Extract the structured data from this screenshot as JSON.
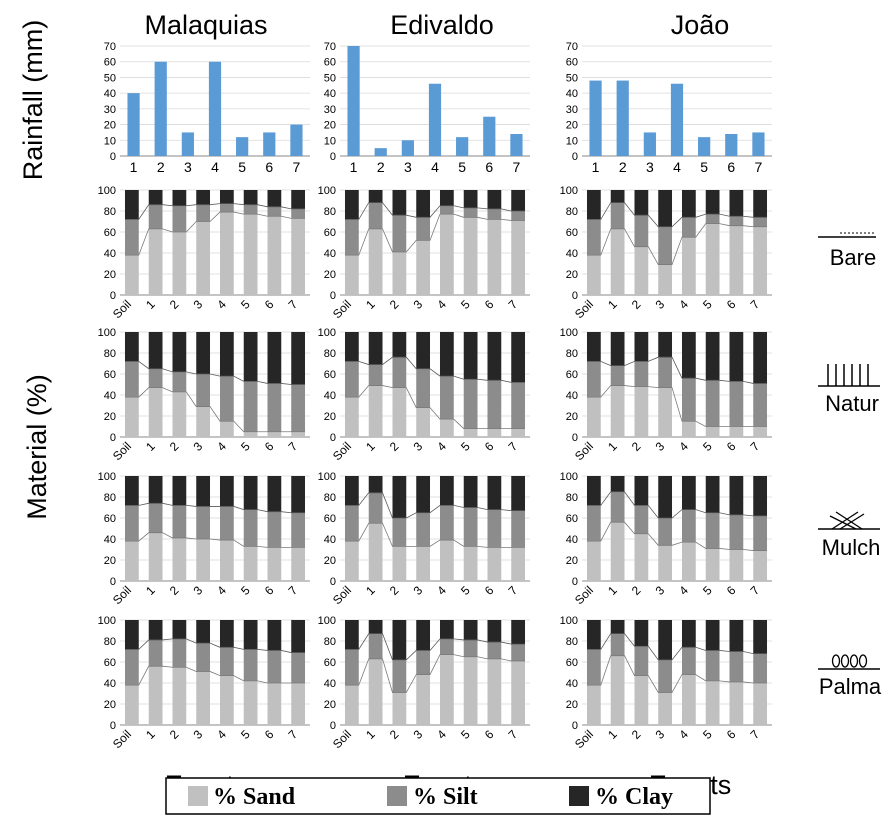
{
  "legend": [
    {
      "label": "% Sand",
      "color": "#c0c0c0"
    },
    {
      "label": "% Silt",
      "color": "#8c8c8c"
    },
    {
      "label": "% Clay",
      "color": "#262626"
    }
  ],
  "y_label_rainfall": "Rainfall (mm)",
  "y_label_material": "Material (%)",
  "x_title": "Events",
  "columns": [
    "Malaquias",
    "Edivaldo",
    "João"
  ],
  "treatments": [
    "Bare",
    "Natur",
    "Mulch",
    "Palma"
  ],
  "chart_data": [
    {
      "type": "bar",
      "name": "rainfall-malaquias",
      "title": "Malaquias",
      "ylabel": "Rainfall (mm)",
      "categories": [
        "1",
        "2",
        "3",
        "4",
        "5",
        "6",
        "7"
      ],
      "values": [
        40,
        60,
        15,
        60,
        12,
        15,
        20
      ],
      "ylim": [
        0,
        70
      ],
      "yticks": [
        0,
        10,
        20,
        30,
        40,
        50,
        60,
        70
      ],
      "color": "#5b9bd5"
    },
    {
      "type": "bar",
      "name": "rainfall-edivaldo",
      "title": "Edivaldo",
      "ylabel": "Rainfall (mm)",
      "categories": [
        "1",
        "2",
        "3",
        "4",
        "5",
        "6",
        "7"
      ],
      "values": [
        70,
        5,
        10,
        46,
        12,
        25,
        14
      ],
      "ylim": [
        0,
        70
      ],
      "yticks": [
        0,
        10,
        20,
        30,
        40,
        50,
        60,
        70
      ],
      "color": "#5b9bd5"
    },
    {
      "type": "bar",
      "name": "rainfall-joao",
      "title": "João",
      "ylabel": "Rainfall (mm)",
      "categories": [
        "1",
        "2",
        "3",
        "4",
        "5",
        "6",
        "7"
      ],
      "values": [
        48,
        48,
        15,
        46,
        12,
        14,
        15
      ],
      "ylim": [
        0,
        70
      ],
      "yticks": [
        0,
        10,
        20,
        30,
        40,
        50,
        60,
        70
      ],
      "color": "#5b9bd5"
    },
    {
      "type": "bar",
      "stacked": true,
      "name": "bare-malaquias",
      "treatment": "Bare",
      "site": "Malaquias",
      "categories": [
        "Soil",
        "1",
        "2",
        "3",
        "4",
        "5",
        "6",
        "7"
      ],
      "ylim": [
        0,
        100
      ],
      "yticks": [
        0,
        20,
        40,
        60,
        80,
        100
      ],
      "series": [
        {
          "name": "% Sand",
          "values": [
            38,
            63,
            60,
            70,
            79,
            77,
            75,
            73
          ]
        },
        {
          "name": "% Silt",
          "values": [
            34,
            23,
            25,
            16,
            8,
            9,
            9,
            9
          ]
        },
        {
          "name": "% Clay",
          "values": [
            28,
            14,
            15,
            14,
            13,
            14,
            16,
            18
          ]
        }
      ]
    },
    {
      "type": "bar",
      "stacked": true,
      "name": "bare-edivaldo",
      "treatment": "Bare",
      "site": "Edivaldo",
      "categories": [
        "Soil",
        "1",
        "2",
        "3",
        "4",
        "5",
        "6",
        "7"
      ],
      "ylim": [
        0,
        100
      ],
      "yticks": [
        0,
        20,
        40,
        60,
        80,
        100
      ],
      "series": [
        {
          "name": "% Sand",
          "values": [
            38,
            63,
            41,
            52,
            77,
            74,
            72,
            71
          ]
        },
        {
          "name": "% Silt",
          "values": [
            34,
            25,
            35,
            22,
            8,
            9,
            10,
            9
          ]
        },
        {
          "name": "% Clay",
          "values": [
            28,
            12,
            24,
            26,
            15,
            17,
            18,
            20
          ]
        }
      ]
    },
    {
      "type": "bar",
      "stacked": true,
      "name": "bare-joao",
      "treatment": "Bare",
      "site": "João",
      "categories": [
        "Soil",
        "1",
        "2",
        "3",
        "4",
        "5",
        "6",
        "7"
      ],
      "ylim": [
        0,
        100
      ],
      "yticks": [
        0,
        20,
        40,
        60,
        80,
        100
      ],
      "series": [
        {
          "name": "% Sand",
          "values": [
            38,
            63,
            46,
            29,
            55,
            68,
            66,
            65
          ]
        },
        {
          "name": "% Silt",
          "values": [
            34,
            25,
            30,
            36,
            19,
            9,
            9,
            9
          ]
        },
        {
          "name": "% Clay",
          "values": [
            28,
            12,
            24,
            35,
            26,
            23,
            25,
            26
          ]
        }
      ]
    },
    {
      "type": "bar",
      "stacked": true,
      "name": "natur-malaquias",
      "treatment": "Natur",
      "site": "Malaquias",
      "categories": [
        "Soil",
        "1",
        "2",
        "3",
        "4",
        "5",
        "6",
        "7"
      ],
      "ylim": [
        0,
        100
      ],
      "yticks": [
        0,
        20,
        40,
        60,
        80,
        100
      ],
      "series": [
        {
          "name": "% Sand",
          "values": [
            38,
            47,
            43,
            29,
            15,
            5,
            5,
            5
          ]
        },
        {
          "name": "% Silt",
          "values": [
            34,
            18,
            19,
            31,
            43,
            48,
            46,
            45
          ]
        },
        {
          "name": "% Clay",
          "values": [
            28,
            35,
            38,
            40,
            42,
            47,
            49,
            50
          ]
        }
      ]
    },
    {
      "type": "bar",
      "stacked": true,
      "name": "natur-edivaldo",
      "treatment": "Natur",
      "site": "Edivaldo",
      "categories": [
        "Soil",
        "1",
        "2",
        "3",
        "4",
        "5",
        "6",
        "7"
      ],
      "ylim": [
        0,
        100
      ],
      "yticks": [
        0,
        20,
        40,
        60,
        80,
        100
      ],
      "series": [
        {
          "name": "% Sand",
          "values": [
            38,
            49,
            47,
            28,
            17,
            8,
            8,
            8
          ]
        },
        {
          "name": "% Silt",
          "values": [
            34,
            20,
            29,
            37,
            41,
            47,
            46,
            44
          ]
        },
        {
          "name": "% Clay",
          "values": [
            28,
            31,
            24,
            35,
            42,
            45,
            46,
            48
          ]
        }
      ]
    },
    {
      "type": "bar",
      "stacked": true,
      "name": "natur-joao",
      "treatment": "Natur",
      "site": "João",
      "categories": [
        "Soil",
        "1",
        "2",
        "3",
        "4",
        "5",
        "6",
        "7"
      ],
      "ylim": [
        0,
        100
      ],
      "yticks": [
        0,
        20,
        40,
        60,
        80,
        100
      ],
      "series": [
        {
          "name": "% Sand",
          "values": [
            38,
            49,
            48,
            47,
            15,
            10,
            10,
            10
          ]
        },
        {
          "name": "% Silt",
          "values": [
            34,
            19,
            24,
            29,
            41,
            44,
            43,
            41
          ]
        },
        {
          "name": "% Clay",
          "values": [
            28,
            32,
            28,
            24,
            44,
            46,
            47,
            49
          ]
        }
      ]
    },
    {
      "type": "bar",
      "stacked": true,
      "name": "mulch-malaquias",
      "treatment": "Mulch",
      "site": "Malaquias",
      "categories": [
        "Soil",
        "1",
        "2",
        "3",
        "4",
        "5",
        "6",
        "7"
      ],
      "ylim": [
        0,
        100
      ],
      "yticks": [
        0,
        20,
        40,
        60,
        80,
        100
      ],
      "series": [
        {
          "name": "% Sand",
          "values": [
            38,
            46,
            41,
            40,
            39,
            33,
            32,
            32
          ]
        },
        {
          "name": "% Silt",
          "values": [
            34,
            28,
            31,
            31,
            32,
            35,
            34,
            33
          ]
        },
        {
          "name": "% Clay",
          "values": [
            28,
            26,
            28,
            29,
            29,
            32,
            34,
            35
          ]
        }
      ]
    },
    {
      "type": "bar",
      "stacked": true,
      "name": "mulch-edivaldo",
      "treatment": "Mulch",
      "site": "Edivaldo",
      "categories": [
        "Soil",
        "1",
        "2",
        "3",
        "4",
        "5",
        "6",
        "7"
      ],
      "ylim": [
        0,
        100
      ],
      "yticks": [
        0,
        20,
        40,
        60,
        80,
        100
      ],
      "series": [
        {
          "name": "% Sand",
          "values": [
            38,
            55,
            33,
            33,
            39,
            33,
            32,
            32
          ]
        },
        {
          "name": "% Silt",
          "values": [
            34,
            29,
            27,
            32,
            33,
            37,
            36,
            35
          ]
        },
        {
          "name": "% Clay",
          "values": [
            28,
            16,
            40,
            35,
            28,
            30,
            32,
            33
          ]
        }
      ]
    },
    {
      "type": "bar",
      "stacked": true,
      "name": "mulch-joao",
      "treatment": "Mulch",
      "site": "João",
      "categories": [
        "Soil",
        "1",
        "2",
        "3",
        "4",
        "5",
        "6",
        "7"
      ],
      "ylim": [
        0,
        100
      ],
      "yticks": [
        0,
        20,
        40,
        60,
        80,
        100
      ],
      "series": [
        {
          "name": "% Sand",
          "values": [
            38,
            56,
            45,
            34,
            37,
            31,
            30,
            29
          ]
        },
        {
          "name": "% Silt",
          "values": [
            34,
            29,
            27,
            26,
            31,
            34,
            33,
            33
          ]
        },
        {
          "name": "% Clay",
          "values": [
            28,
            15,
            28,
            40,
            32,
            35,
            37,
            38
          ]
        }
      ]
    },
    {
      "type": "bar",
      "stacked": true,
      "name": "palma-malaquias",
      "treatment": "Palma",
      "site": "Malaquias",
      "categories": [
        "Soil",
        "1",
        "2",
        "3",
        "4",
        "5",
        "6",
        "7"
      ],
      "ylim": [
        0,
        100
      ],
      "yticks": [
        0,
        20,
        40,
        60,
        80,
        100
      ],
      "series": [
        {
          "name": "% Sand",
          "values": [
            38,
            56,
            55,
            51,
            47,
            42,
            40,
            40
          ]
        },
        {
          "name": "% Silt",
          "values": [
            34,
            25,
            27,
            27,
            27,
            30,
            31,
            29
          ]
        },
        {
          "name": "% Clay",
          "values": [
            28,
            19,
            18,
            22,
            26,
            28,
            29,
            31
          ]
        }
      ]
    },
    {
      "type": "bar",
      "stacked": true,
      "name": "palma-edivaldo",
      "treatment": "Palma",
      "site": "Edivaldo",
      "categories": [
        "Soil",
        "1",
        "2",
        "3",
        "4",
        "5",
        "6",
        "7"
      ],
      "ylim": [
        0,
        100
      ],
      "yticks": [
        0,
        20,
        40,
        60,
        80,
        100
      ],
      "series": [
        {
          "name": "% Sand",
          "values": [
            38,
            63,
            31,
            48,
            67,
            65,
            63,
            61
          ]
        },
        {
          "name": "% Silt",
          "values": [
            34,
            24,
            31,
            23,
            15,
            16,
            16,
            16
          ]
        },
        {
          "name": "% Clay",
          "values": [
            28,
            13,
            38,
            29,
            18,
            19,
            21,
            23
          ]
        }
      ]
    },
    {
      "type": "bar",
      "stacked": true,
      "name": "palma-joao",
      "treatment": "Palma",
      "site": "João",
      "categories": [
        "Soil",
        "1",
        "2",
        "3",
        "4",
        "5",
        "6",
        "7"
      ],
      "ylim": [
        0,
        100
      ],
      "yticks": [
        0,
        20,
        40,
        60,
        80,
        100
      ],
      "series": [
        {
          "name": "% Sand",
          "values": [
            38,
            66,
            47,
            31,
            48,
            42,
            41,
            40
          ]
        },
        {
          "name": "% Silt",
          "values": [
            34,
            21,
            28,
            31,
            26,
            29,
            29,
            28
          ]
        },
        {
          "name": "% Clay",
          "values": [
            28,
            13,
            25,
            38,
            26,
            29,
            30,
            32
          ]
        }
      ]
    }
  ]
}
